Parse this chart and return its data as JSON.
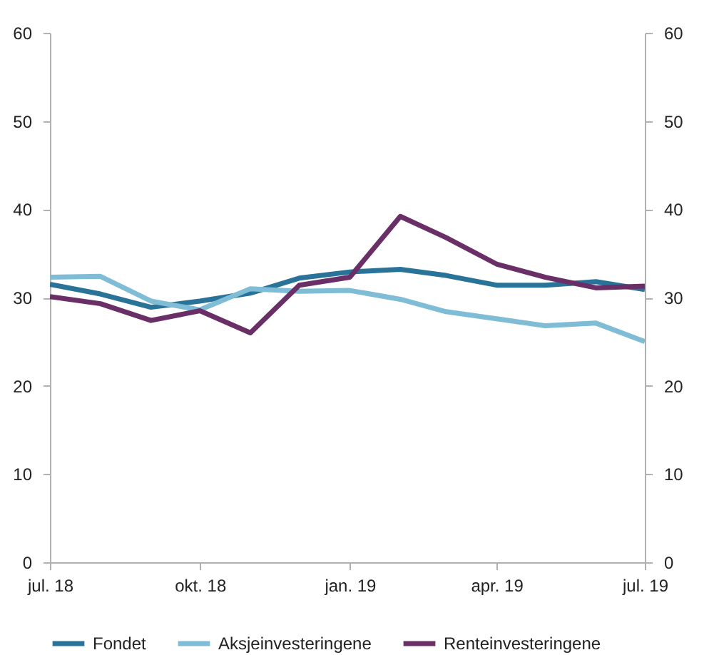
{
  "chart_data": {
    "type": "line",
    "x": [
      "2018-07",
      "2018-08",
      "2018-09",
      "2018-10",
      "2018-11",
      "2018-12",
      "2019-01",
      "2019-02",
      "2019-03",
      "2019-04",
      "2019-05",
      "2019-06",
      "2019-07"
    ],
    "series": [
      {
        "name": "Fondet",
        "color": "#2a7398",
        "values": [
          31.5,
          30.4,
          28.9,
          29.6,
          30.5,
          32.2,
          32.9,
          33.2,
          32.5,
          31.4,
          31.4,
          31.8,
          30.9
        ]
      },
      {
        "name": "Aksjeinvesteringene",
        "color": "#7fbcd6",
        "values": [
          32.3,
          32.4,
          29.6,
          28.6,
          31.0,
          30.7,
          30.8,
          29.8,
          28.4,
          27.6,
          26.8,
          27.1,
          25.0
        ]
      },
      {
        "name": "Renteinvesteringene",
        "color": "#6a2f66",
        "values": [
          30.1,
          29.3,
          27.4,
          28.5,
          26.0,
          31.4,
          32.3,
          39.2,
          36.8,
          33.8,
          32.3,
          31.1,
          31.3
        ]
      }
    ],
    "xlim": [
      "2018-07",
      "2019-07"
    ],
    "xticks": [
      {
        "value": "2018-07",
        "label": "jul. 18"
      },
      {
        "value": "2018-10",
        "label": "okt. 18"
      },
      {
        "value": "2019-01",
        "label": "jan. 19"
      },
      {
        "value": "2019-04",
        "label": "apr. 19"
      },
      {
        "value": "2019-07",
        "label": "jul. 19"
      }
    ],
    "ylim": [
      0,
      60
    ],
    "yticks": [
      0,
      10,
      20,
      30,
      40,
      50,
      60
    ],
    "y2lim": [
      0,
      60
    ],
    "y2ticks": [
      0,
      10,
      20,
      30,
      40,
      50,
      60
    ],
    "grid": false,
    "legend": "bottom",
    "line_style": "solid",
    "marker": "none"
  }
}
